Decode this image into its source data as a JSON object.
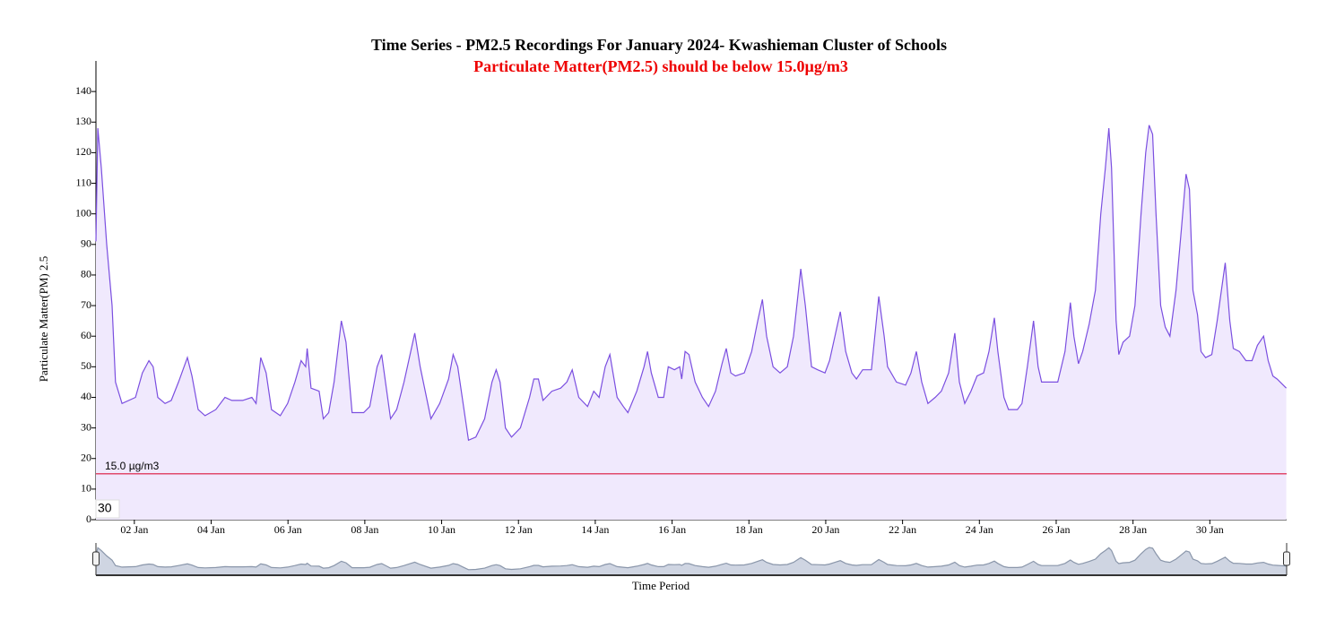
{
  "chart_data": {
    "type": "area",
    "title": "Time Series - PM2.5 Recordings For January 2024- Kwashieman Cluster of Schools",
    "subtitle": "Particulate Matter(PM2.5) should be below 15.0µg/m3",
    "y_label": "Particulate Matter(PM) 2.5",
    "x_label": "Time Period",
    "zoom_label": "30",
    "color": "#7b4fe0",
    "fill": "#f0e9fd",
    "threshold": {
      "value": 15,
      "label": "15.0 µg/m3",
      "color": "#dc143c"
    },
    "xlim": [
      1,
      32
    ],
    "ylim": [
      0,
      150
    ],
    "yticks": [
      0,
      10,
      20,
      30,
      40,
      50,
      60,
      70,
      80,
      90,
      100,
      110,
      120,
      130,
      140
    ],
    "xticks": [
      {
        "value": 2,
        "label": "02 Jan"
      },
      {
        "value": 4,
        "label": "04 Jan"
      },
      {
        "value": 6,
        "label": "06 Jan"
      },
      {
        "value": 8,
        "label": "08 Jan"
      },
      {
        "value": 10,
        "label": "10 Jan"
      },
      {
        "value": 12,
        "label": "12 Jan"
      },
      {
        "value": 14,
        "label": "14 Jan"
      },
      {
        "value": 16,
        "label": "16 Jan"
      },
      {
        "value": 18,
        "label": "18 Jan"
      },
      {
        "value": 20,
        "label": "20 Jan"
      },
      {
        "value": 22,
        "label": "22 Jan"
      },
      {
        "value": 24,
        "label": "24 Jan"
      },
      {
        "value": 26,
        "label": "26 Jan"
      },
      {
        "value": 28,
        "label": "28 Jan"
      },
      {
        "value": 30,
        "label": "30 Jan"
      }
    ],
    "x": [
      1.0,
      1.05,
      1.14,
      1.28,
      1.42,
      1.51,
      1.68,
      2.03,
      2.21,
      2.38,
      2.49,
      2.61,
      2.8,
      2.96,
      3.15,
      3.38,
      3.5,
      3.66,
      3.84,
      4.12,
      4.36,
      4.54,
      4.82,
      5.06,
      5.17,
      5.29,
      5.43,
      5.57,
      5.8,
      5.99,
      6.18,
      6.34,
      6.46,
      6.5,
      6.6,
      6.81,
      6.92,
      7.06,
      7.2,
      7.39,
      7.51,
      7.67,
      7.97,
      8.13,
      8.32,
      8.44,
      8.55,
      8.67,
      8.83,
      9.02,
      9.3,
      9.44,
      9.72,
      9.95,
      10.18,
      10.3,
      10.42,
      10.56,
      10.7,
      10.89,
      11.12,
      11.31,
      11.42,
      11.52,
      11.66,
      11.82,
      12.05,
      12.29,
      12.4,
      12.52,
      12.64,
      12.87,
      13.1,
      13.26,
      13.4,
      13.57,
      13.8,
      13.96,
      14.1,
      14.26,
      14.38,
      14.57,
      14.73,
      14.85,
      15.08,
      15.27,
      15.36,
      15.46,
      15.64,
      15.78,
      15.9,
      16.06,
      16.2,
      16.25,
      16.34,
      16.44,
      16.6,
      16.79,
      16.95,
      17.13,
      17.3,
      17.41,
      17.53,
      17.65,
      17.88,
      18.07,
      18.23,
      18.35,
      18.46,
      18.63,
      18.81,
      19.0,
      19.16,
      19.35,
      19.47,
      19.63,
      19.79,
      19.98,
      20.1,
      20.24,
      20.38,
      20.52,
      20.68,
      20.8,
      20.96,
      21.19,
      21.38,
      21.52,
      21.61,
      21.84,
      22.08,
      22.22,
      22.36,
      22.5,
      22.66,
      22.85,
      23.01,
      23.2,
      23.36,
      23.48,
      23.62,
      23.78,
      23.94,
      24.11,
      24.25,
      24.39,
      24.48,
      24.64,
      24.76,
      24.99,
      25.11,
      25.25,
      25.41,
      25.53,
      25.62,
      25.81,
      26.04,
      26.23,
      26.37,
      26.46,
      26.58,
      26.69,
      26.86,
      27.02,
      27.16,
      27.28,
      27.37,
      27.44,
      27.56,
      27.63,
      27.74,
      27.91,
      28.05,
      28.21,
      28.33,
      28.42,
      28.51,
      28.6,
      28.72,
      28.84,
      28.96,
      29.12,
      29.26,
      29.38,
      29.47,
      29.56,
      29.68,
      29.77,
      29.89,
      30.05,
      30.19,
      30.4,
      30.52,
      30.61,
      30.77,
      30.94,
      31.1,
      31.24,
      31.4,
      31.52,
      31.64,
      31.75,
      31.99
    ],
    "values": [
      91,
      128,
      115,
      90,
      70,
      45,
      38,
      40,
      48,
      52,
      50,
      40,
      38,
      39,
      45,
      53,
      47,
      36,
      34,
      36,
      40,
      39,
      39,
      40,
      38,
      53,
      48,
      36,
      34,
      38,
      45,
      52,
      50,
      56,
      43,
      42,
      33,
      35,
      45,
      65,
      58,
      35,
      35,
      37,
      50,
      54,
      44,
      33,
      36,
      45,
      61,
      50,
      33,
      38,
      46,
      54,
      50,
      38,
      26,
      27,
      33,
      45,
      49,
      45,
      30,
      27,
      30,
      40,
      46,
      46,
      39,
      42,
      43,
      45,
      49,
      40,
      37,
      42,
      40,
      50,
      54,
      40,
      37,
      35,
      42,
      50,
      55,
      48,
      40,
      40,
      50,
      49,
      50,
      46,
      55,
      54,
      45,
      40,
      37,
      42,
      51,
      56,
      48,
      47,
      48,
      55,
      65,
      72,
      60,
      50,
      48,
      50,
      60,
      82,
      70,
      50,
      49,
      48,
      52,
      60,
      68,
      55,
      48,
      46,
      49,
      49,
      73,
      60,
      50,
      45,
      44,
      48,
      55,
      45,
      38,
      40,
      42,
      48,
      61,
      45,
      38,
      42,
      47,
      48,
      55,
      66,
      55,
      40,
      36,
      36,
      38,
      50,
      65,
      50,
      45,
      45,
      45,
      55,
      71,
      60,
      51,
      55,
      64,
      75,
      100,
      115,
      128,
      115,
      65,
      54,
      58,
      60,
      70,
      100,
      120,
      129,
      126,
      100,
      70,
      63,
      60,
      75,
      95,
      113,
      108,
      75,
      67,
      55,
      53,
      54,
      65,
      84,
      65,
      56,
      55,
      52,
      52,
      57,
      60,
      52,
      47,
      46,
      43
    ]
  }
}
